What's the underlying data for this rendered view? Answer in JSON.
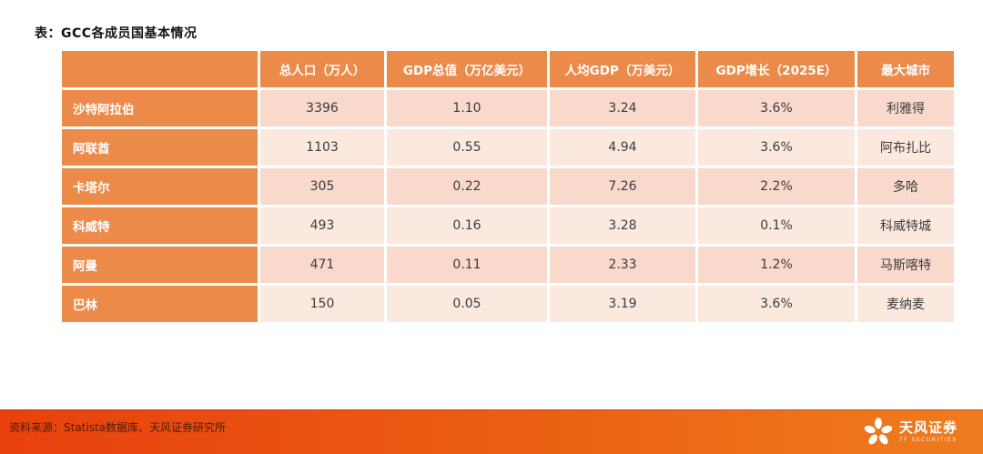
{
  "page": {
    "title": "表：GCC各成员国基本情况"
  },
  "table": {
    "columns": [
      "",
      "总人口（万人）",
      "GDP总值（万亿美元）",
      "人均GDP（万美元）",
      "GDP增长（2025E）",
      "最大城市"
    ],
    "rows": [
      [
        "沙特阿拉伯",
        "3396",
        "1.10",
        "3.24",
        "3.6%",
        "利雅得"
      ],
      [
        "阿联酋",
        "1103",
        "0.55",
        "4.94",
        "3.6%",
        "阿布扎比"
      ],
      [
        "卡塔尔",
        "305",
        "0.22",
        "7.26",
        "2.2%",
        "多哈"
      ],
      [
        "科威特",
        "493",
        "0.16",
        "3.28",
        "0.1%",
        "科威特城"
      ],
      [
        "阿曼",
        "471",
        "0.11",
        "2.33",
        "1.2%",
        "马斯喀特"
      ],
      [
        "巴林",
        "150",
        "0.05",
        "3.19",
        "3.6%",
        "麦纳麦"
      ]
    ]
  },
  "footer": {
    "source": "资料来源：Statista数据库、天风证券研究所",
    "brand_name": "天风证券",
    "brand_subtitle": "TF SECURITIES"
  },
  "colors": {
    "accent": "#EC8A4A",
    "row_odd": "#F8D9CB",
    "row_even": "#FBE8DF",
    "cell_text": "#3C3C3C",
    "title_text": "#141414",
    "band_left": "#E8400E",
    "band_right": "#EF7C1E",
    "band_text": "#4E1E08"
  }
}
